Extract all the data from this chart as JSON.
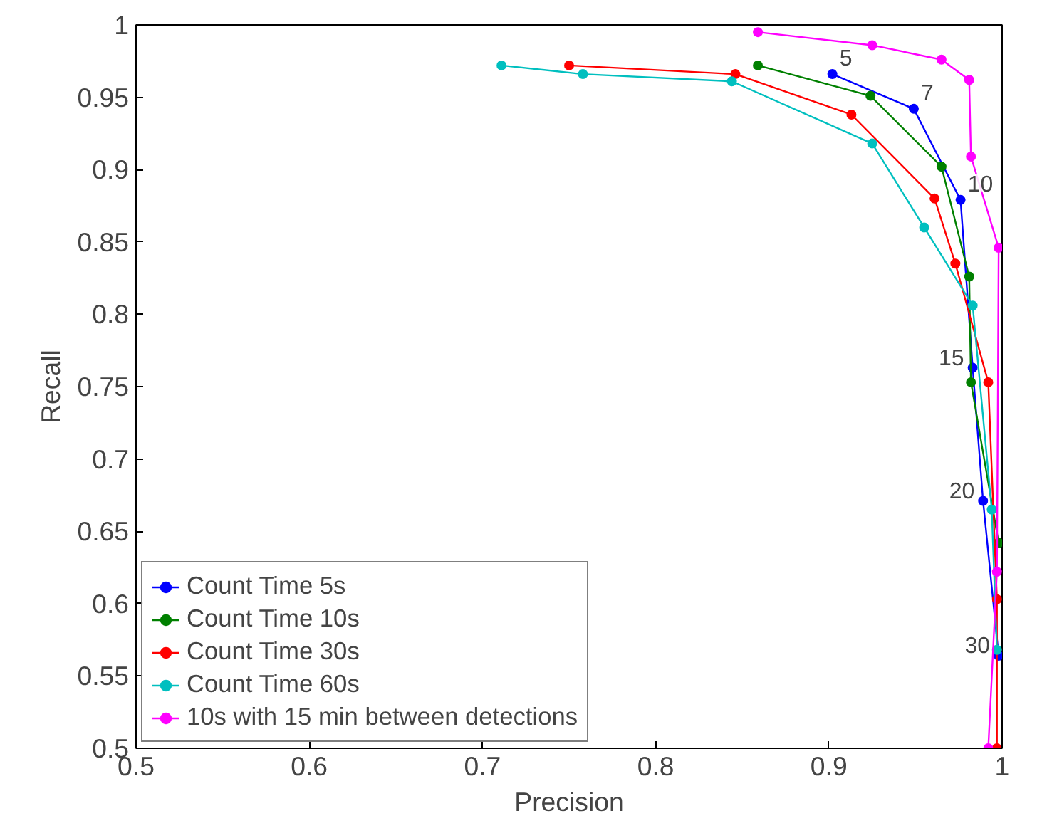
{
  "chart_data": {
    "type": "line",
    "xlabel": "Precision",
    "ylabel": "Recall",
    "xlim": [
      0.5,
      1
    ],
    "ylim": [
      0.5,
      1
    ],
    "xticks": [
      0.5,
      0.6,
      0.7,
      0.8,
      0.9,
      1
    ],
    "yticks": [
      0.5,
      0.55,
      0.6,
      0.65,
      0.7,
      0.75,
      0.8,
      0.85,
      0.9,
      0.95,
      1
    ],
    "grid": false,
    "legend": "bottom left",
    "marker": "circle",
    "line_style": "solid",
    "series": [
      {
        "name": "Count Time 5s",
        "color": "#0000ff",
        "x": [
          0.902,
          0.949,
          0.976,
          0.983,
          0.989,
          0.998
        ],
        "values": [
          0.966,
          0.942,
          0.879,
          0.763,
          0.671,
          0.564
        ]
      },
      {
        "name": "Count Time 10s",
        "color": "#008000",
        "x": [
          0.859,
          0.924,
          0.965,
          0.981,
          0.982,
          0.998
        ],
        "values": [
          0.972,
          0.951,
          0.902,
          0.826,
          0.753,
          0.642
        ]
      },
      {
        "name": "Count Time 30s",
        "color": "#ff0000",
        "x": [
          0.75,
          0.846,
          0.913,
          0.961,
          0.973,
          0.992,
          0.997,
          0.997
        ],
        "values": [
          0.972,
          0.966,
          0.938,
          0.88,
          0.835,
          0.753,
          0.603,
          0.5
        ]
      },
      {
        "name": "Count Time 60s",
        "color": "#00bfbf",
        "x": [
          0.711,
          0.758,
          0.844,
          0.925,
          0.955,
          0.983,
          0.994,
          0.997
        ],
        "values": [
          0.972,
          0.966,
          0.961,
          0.918,
          0.86,
          0.806,
          0.665,
          0.568
        ]
      },
      {
        "name": "10s with 15 min between detections",
        "color": "#ff00ff",
        "x": [
          0.859,
          0.925,
          0.965,
          0.981,
          0.982,
          0.998,
          0.997,
          0.992
        ],
        "values": [
          0.995,
          0.986,
          0.976,
          0.962,
          0.909,
          0.846,
          0.622,
          0.5
        ]
      }
    ],
    "annotations": [
      {
        "text": "5",
        "x": 0.902,
        "y": 0.966
      },
      {
        "text": "7",
        "x": 0.949,
        "y": 0.942
      },
      {
        "text": "10",
        "x": 0.976,
        "y": 0.879
      },
      {
        "text": "15",
        "x": 0.983,
        "y": 0.763
      },
      {
        "text": "20",
        "x": 0.989,
        "y": 0.671
      },
      {
        "text": "30",
        "x": 0.998,
        "y": 0.564
      }
    ]
  }
}
